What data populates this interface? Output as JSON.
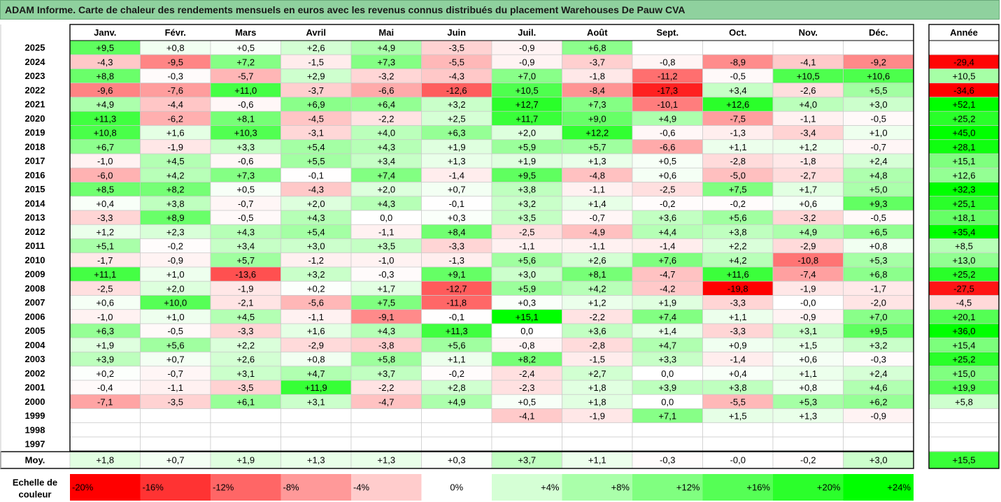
{
  "title": "ADAM Informe. Carte de chaleur des rendements mensuels en euros avec les revenus connus distribués du placement Warehouses De Pauw CVA",
  "colors": {
    "negative_max": "#ff0000",
    "neutral": "#ffffff",
    "positive_max": "#00ff00",
    "title_background": "#8fd19e"
  },
  "chart_data": {
    "type": "heatmap",
    "title": "ADAM Informe. Carte de chaleur des rendements mensuels en euros avec les revenus connus distribués du placement Warehouses De Pauw CVA",
    "months": [
      "Janv.",
      "Févr.",
      "Mars",
      "Avril",
      "Mai",
      "Juin",
      "Juil.",
      "Août",
      "Sept.",
      "Oct.",
      "Nov.",
      "Déc."
    ],
    "annual_header": "Année",
    "rows": [
      {
        "year": "2025",
        "values": [
          "+9,5",
          "+0,8",
          "+0,5",
          "+2,6",
          "+4,9",
          "-3,5",
          "-0,9",
          "+6,8",
          "",
          "",
          "",
          ""
        ],
        "annual": ""
      },
      {
        "year": "2024",
        "values": [
          "-4,3",
          "-9,5",
          "+7,2",
          "-1,5",
          "+7,3",
          "-5,5",
          "-0,9",
          "-3,7",
          "-0,8",
          "-8,9",
          "-4,1",
          "-9,2"
        ],
        "annual": "-29,4"
      },
      {
        "year": "2023",
        "values": [
          "+8,8",
          "-0,3",
          "-5,7",
          "+2,9",
          "-3,2",
          "-4,3",
          "+7,0",
          "-1,8",
          "-11,2",
          "-0,5",
          "+10,5",
          "+10,6"
        ],
        "annual": "+10,5"
      },
      {
        "year": "2022",
        "values": [
          "-9,6",
          "-7,6",
          "+11,0",
          "-3,7",
          "-6,6",
          "-12,6",
          "+10,5",
          "-8,4",
          "-17,3",
          "+3,4",
          "-2,6",
          "+5,5"
        ],
        "annual": "-34,6"
      },
      {
        "year": "2021",
        "values": [
          "+4,9",
          "-4,4",
          "-0,6",
          "+6,9",
          "+6,4",
          "+3,2",
          "+12,7",
          "+7,3",
          "-10,1",
          "+12,6",
          "+4,0",
          "+3,0"
        ],
        "annual": "+52,1"
      },
      {
        "year": "2020",
        "values": [
          "+11,3",
          "-6,2",
          "+8,1",
          "-4,5",
          "-2,2",
          "+2,5",
          "+11,7",
          "+9,0",
          "+4,9",
          "-7,5",
          "-1,1",
          "-0,5"
        ],
        "annual": "+25,2"
      },
      {
        "year": "2019",
        "values": [
          "+10,8",
          "+1,6",
          "+10,3",
          "-3,1",
          "+4,0",
          "+6,3",
          "+2,0",
          "+12,2",
          "-0,6",
          "-1,3",
          "-3,4",
          "+1,0"
        ],
        "annual": "+45,0"
      },
      {
        "year": "2018",
        "values": [
          "+6,7",
          "-1,9",
          "+3,3",
          "+5,4",
          "+4,3",
          "+1,9",
          "+5,9",
          "+5,7",
          "-6,6",
          "+1,1",
          "+1,2",
          "-0,7"
        ],
        "annual": "+28,1"
      },
      {
        "year": "2017",
        "values": [
          "-1,0",
          "+4,5",
          "-0,6",
          "+5,5",
          "+3,4",
          "+1,3",
          "+1,9",
          "+1,3",
          "+0,5",
          "-2,8",
          "-1,8",
          "+2,4"
        ],
        "annual": "+15,1"
      },
      {
        "year": "2016",
        "values": [
          "-6,0",
          "+4,2",
          "+7,3",
          "-0,1",
          "+7,4",
          "-1,4",
          "+9,5",
          "-4,8",
          "+0,6",
          "-5,0",
          "-2,7",
          "+4,8"
        ],
        "annual": "+12,6"
      },
      {
        "year": "2015",
        "values": [
          "+8,5",
          "+8,2",
          "+0,5",
          "-4,3",
          "+2,0",
          "+0,7",
          "+3,8",
          "-1,1",
          "-2,5",
          "+7,5",
          "+1,7",
          "+5,0"
        ],
        "annual": "+32,3"
      },
      {
        "year": "2014",
        "values": [
          "+0,4",
          "+3,8",
          "-0,7",
          "+2,0",
          "+4,3",
          "-0,1",
          "+3,2",
          "+1,4",
          "-0,2",
          "-0,2",
          "+0,6",
          "+9,3"
        ],
        "annual": "+25,1"
      },
      {
        "year": "2013",
        "values": [
          "-3,3",
          "+8,9",
          "-0,5",
          "+4,3",
          "0,0",
          "+0,3",
          "+3,5",
          "-0,7",
          "+3,6",
          "+5,6",
          "-3,2",
          "-0,5"
        ],
        "annual": "+18,1"
      },
      {
        "year": "2012",
        "values": [
          "+1,2",
          "+2,3",
          "+4,3",
          "+5,4",
          "-1,1",
          "+8,4",
          "-2,5",
          "-4,9",
          "+4,4",
          "+3,8",
          "+4,9",
          "+6,5"
        ],
        "annual": "+35,4"
      },
      {
        "year": "2011",
        "values": [
          "+5,1",
          "-0,2",
          "+3,4",
          "+3,0",
          "+3,5",
          "-3,3",
          "-1,1",
          "-1,1",
          "-1,4",
          "+2,2",
          "-2,9",
          "+0,8"
        ],
        "annual": "+8,5"
      },
      {
        "year": "2010",
        "values": [
          "-1,7",
          "-0,9",
          "+5,7",
          "-1,2",
          "-1,0",
          "-1,3",
          "+5,6",
          "+2,6",
          "+7,6",
          "+4,2",
          "-10,8",
          "+5,3"
        ],
        "annual": "+13,0"
      },
      {
        "year": "2009",
        "values": [
          "+11,1",
          "+1,0",
          "-13,6",
          "+3,2",
          "-0,3",
          "+9,1",
          "+3,0",
          "+8,1",
          "-4,7",
          "+11,6",
          "-7,4",
          "+6,8"
        ],
        "annual": "+25,2"
      },
      {
        "year": "2008",
        "values": [
          "-2,5",
          "+2,0",
          "-1,9",
          "+0,2",
          "+1,7",
          "-12,7",
          "+5,9",
          "+4,2",
          "-4,2",
          "-19,8",
          "-1,9",
          "-1,7"
        ],
        "annual": "-27,5"
      },
      {
        "year": "2007",
        "values": [
          "+0,6",
          "+10,0",
          "-2,1",
          "-5,6",
          "+7,5",
          "-11,8",
          "+0,3",
          "+1,2",
          "+1,9",
          "-3,3",
          "-0,0",
          "-2,0"
        ],
        "annual": "-4,5"
      },
      {
        "year": "2006",
        "values": [
          "-1,0",
          "+1,0",
          "+4,5",
          "-1,1",
          "-9,1",
          "-0,1",
          "+15,1",
          "-2,2",
          "+7,4",
          "+1,1",
          "-0,9",
          "+7,0"
        ],
        "annual": "+20,1"
      },
      {
        "year": "2005",
        "values": [
          "+6,3",
          "-0,5",
          "-3,3",
          "+1,6",
          "+4,3",
          "+11,3",
          "0,0",
          "+3,6",
          "+1,4",
          "-3,3",
          "+3,1",
          "+9,5"
        ],
        "annual": "+36,0"
      },
      {
        "year": "2004",
        "values": [
          "+1,9",
          "+5,6",
          "+2,2",
          "-2,9",
          "-3,8",
          "+5,6",
          "-0,8",
          "-2,8",
          "+4,7",
          "+0,9",
          "+1,5",
          "+3,2"
        ],
        "annual": "+15,4"
      },
      {
        "year": "2003",
        "values": [
          "+3,9",
          "+0,7",
          "+2,6",
          "+0,8",
          "+5,8",
          "+1,1",
          "+8,2",
          "-1,5",
          "+3,3",
          "-1,4",
          "+0,6",
          "-0,3"
        ],
        "annual": "+25,2"
      },
      {
        "year": "2002",
        "values": [
          "+0,2",
          "-0,7",
          "+3,1",
          "+4,7",
          "+3,7",
          "-0,2",
          "-2,4",
          "+2,7",
          "0,0",
          "+0,4",
          "+1,1",
          "+2,4"
        ],
        "annual": "+15,0"
      },
      {
        "year": "2001",
        "values": [
          "-0,4",
          "-1,1",
          "-3,5",
          "+11,9",
          "-2,2",
          "+2,8",
          "-2,3",
          "+1,8",
          "+3,9",
          "+3,8",
          "+0,8",
          "+4,6"
        ],
        "annual": "+19,9"
      },
      {
        "year": "2000",
        "values": [
          "-7,1",
          "-3,5",
          "+6,1",
          "+3,1",
          "-4,7",
          "+4,9",
          "+0,5",
          "+1,8",
          "0,0",
          "-5,5",
          "+5,3",
          "+6,2"
        ],
        "annual": "+5,8"
      },
      {
        "year": "1999",
        "values": [
          "",
          "",
          "",
          "",
          "",
          "",
          "-4,1",
          "-1,9",
          "+7,1",
          "+1,5",
          "+1,3",
          "-0,9"
        ],
        "annual": ""
      },
      {
        "year": "1998",
        "values": [
          "",
          "",
          "",
          "",
          "",
          "",
          "",
          "",
          "",
          "",
          "",
          ""
        ],
        "annual": ""
      },
      {
        "year": "1997",
        "values": [
          "",
          "",
          "",
          "",
          "",
          "",
          "",
          "",
          "",
          "",
          "",
          ""
        ],
        "annual": ""
      }
    ],
    "average": {
      "label": "Moy.",
      "values": [
        "+1,8",
        "+0,7",
        "+1,9",
        "+1,3",
        "+1,3",
        "+0,3",
        "+3,7",
        "+1,1",
        "-0,3",
        "-0,0",
        "-0,2",
        "+3,0"
      ],
      "annual": "+15,5"
    },
    "color_scale": {
      "label_line1": "Echelle de",
      "label_line2": "couleur",
      "steps": [
        {
          "value": -20,
          "label": "-20%"
        },
        {
          "value": -16,
          "label": "-16%"
        },
        {
          "value": -12,
          "label": "-12%"
        },
        {
          "value": -8,
          "label": "-8%"
        },
        {
          "value": -4,
          "label": "-4%"
        },
        {
          "value": 0,
          "label": "0%"
        },
        {
          "value": 4,
          "label": "+4%"
        },
        {
          "value": 8,
          "label": "+8%"
        },
        {
          "value": 12,
          "label": "+12%"
        },
        {
          "value": 16,
          "label": "+16%"
        },
        {
          "value": 20,
          "label": "+20%"
        },
        {
          "value": 24,
          "label": "+24%"
        }
      ]
    }
  }
}
